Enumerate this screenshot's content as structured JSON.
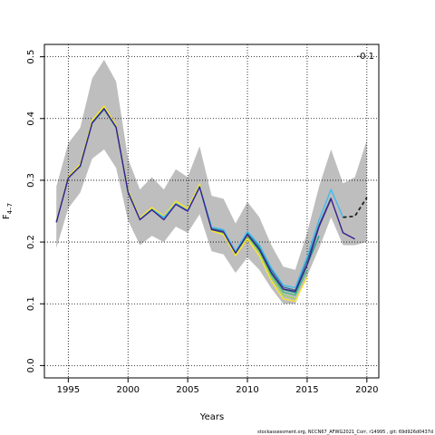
{
  "chart_data": {
    "type": "line",
    "xlabel": "Years",
    "ylabel_main": "F",
    "ylabel_sub": "4–7",
    "corner_label": "-0.1",
    "footer": "stockassessment.org,  NCCN67_AFWG2021_Corr,  r14995 ,  git: 69d926d0437d",
    "xlim": [
      1993,
      2021
    ],
    "ylim": [
      -0.02,
      0.52
    ],
    "x_ticks": [
      1995,
      2000,
      2005,
      2010,
      2015,
      2020
    ],
    "y_ticks": [
      0.0,
      0.1,
      0.2,
      0.3,
      0.4,
      0.5
    ],
    "y_tick_labels": [
      "0.0",
      "0.1",
      "0.2",
      "0.3",
      "0.4",
      "0.5"
    ],
    "grid": true,
    "band": {
      "color": "#bebebe",
      "x": [
        1994,
        1995,
        1996,
        1997,
        1998,
        1999,
        2000,
        2001,
        2002,
        2003,
        2004,
        2005,
        2006,
        2007,
        2008,
        2009,
        2010,
        2011,
        2012,
        2013,
        2014,
        2015,
        2016,
        2017,
        2018,
        2019,
        2020
      ],
      "upper": [
        0.29,
        0.36,
        0.385,
        0.465,
        0.495,
        0.46,
        0.335,
        0.285,
        0.305,
        0.285,
        0.318,
        0.305,
        0.355,
        0.275,
        0.27,
        0.23,
        0.265,
        0.24,
        0.195,
        0.16,
        0.155,
        0.215,
        0.29,
        0.35,
        0.295,
        0.305,
        0.365
      ],
      "lower": [
        0.19,
        0.255,
        0.28,
        0.335,
        0.35,
        0.32,
        0.235,
        0.195,
        0.21,
        0.2,
        0.225,
        0.215,
        0.245,
        0.185,
        0.18,
        0.15,
        0.175,
        0.155,
        0.125,
        0.1,
        0.1,
        0.145,
        0.19,
        0.24,
        0.195,
        0.195,
        0.2
      ]
    },
    "series": [
      {
        "color": "#1f9e89",
        "width": 1.4,
        "dash": "",
        "x": [
          1994,
          1995,
          1996,
          1997,
          1998,
          1999,
          2000,
          2001,
          2002,
          2003,
          2004,
          2005,
          2006,
          2007,
          2008,
          2009,
          2010,
          2011,
          2012,
          2013,
          2014,
          2015,
          2016
        ],
        "y": [
          0.232,
          0.305,
          0.322,
          0.392,
          0.415,
          0.385,
          0.28,
          0.237,
          0.252,
          0.24,
          0.262,
          0.251,
          0.29,
          0.22,
          0.216,
          0.182,
          0.213,
          0.19,
          0.151,
          0.123,
          0.118,
          0.163,
          0.21
        ]
      },
      {
        "color": "#35b779",
        "width": 1.2,
        "dash": "",
        "x": [
          1994,
          1995,
          1996,
          1997,
          1998,
          1999,
          2000,
          2001,
          2002,
          2003,
          2004,
          2005,
          2006,
          2007,
          2008,
          2009,
          2010,
          2011,
          2012,
          2013,
          2014,
          2015
        ],
        "y": [
          0.232,
          0.303,
          0.323,
          0.394,
          0.417,
          0.386,
          0.281,
          0.237,
          0.253,
          0.239,
          0.262,
          0.251,
          0.29,
          0.219,
          0.215,
          0.181,
          0.211,
          0.186,
          0.147,
          0.119,
          0.114,
          0.155
        ]
      },
      {
        "color": "#90d743",
        "width": 1.2,
        "dash": "",
        "x": [
          1994,
          1995,
          1996,
          1997,
          1998,
          1999,
          2000,
          2001,
          2002,
          2003,
          2004,
          2005,
          2006,
          2007,
          2008,
          2009,
          2010,
          2011,
          2012,
          2013,
          2014
        ],
        "y": [
          0.233,
          0.304,
          0.324,
          0.395,
          0.418,
          0.387,
          0.282,
          0.238,
          0.254,
          0.24,
          0.263,
          0.252,
          0.291,
          0.219,
          0.214,
          0.18,
          0.209,
          0.183,
          0.143,
          0.114,
          0.108
        ]
      },
      {
        "color": "#fde725",
        "width": 1.3,
        "dash": "",
        "x": [
          1994,
          1995,
          1996,
          1997,
          1998,
          1999,
          2000,
          2001,
          2002,
          2003,
          2004,
          2005,
          2006,
          2007,
          2008,
          2009,
          2010,
          2011,
          2012,
          2013,
          2014,
          2015
        ],
        "y": [
          0.234,
          0.306,
          0.326,
          0.397,
          0.42,
          0.389,
          0.284,
          0.239,
          0.256,
          0.242,
          0.266,
          0.254,
          0.294,
          0.218,
          0.212,
          0.178,
          0.205,
          0.178,
          0.137,
          0.108,
          0.104,
          0.143
        ]
      },
      {
        "color": "#31688e",
        "width": 1.2,
        "dash": "",
        "x": [
          1994,
          1995,
          1996,
          1997,
          1998,
          1999,
          2000,
          2001,
          2002,
          2003,
          2004,
          2005,
          2006,
          2007,
          2008,
          2009,
          2010,
          2011,
          2012,
          2013,
          2014,
          2015,
          2016,
          2017
        ],
        "y": [
          0.232,
          0.304,
          0.323,
          0.393,
          0.416,
          0.386,
          0.281,
          0.237,
          0.253,
          0.24,
          0.262,
          0.251,
          0.29,
          0.222,
          0.218,
          0.183,
          0.215,
          0.193,
          0.155,
          0.127,
          0.122,
          0.17,
          0.228,
          0.272
        ]
      },
      {
        "color": "#3fbbef",
        "width": 1.4,
        "dash": "",
        "x": [
          1994,
          1995,
          1996,
          1997,
          1998,
          1999,
          2000,
          2001,
          2002,
          2003,
          2004,
          2005,
          2006,
          2007,
          2008,
          2009,
          2010,
          2011,
          2012,
          2013,
          2014,
          2015,
          2016,
          2017,
          2018
        ],
        "y": [
          0.232,
          0.304,
          0.323,
          0.393,
          0.416,
          0.386,
          0.281,
          0.237,
          0.253,
          0.24,
          0.262,
          0.251,
          0.29,
          0.224,
          0.22,
          0.185,
          0.217,
          0.195,
          0.158,
          0.13,
          0.126,
          0.176,
          0.236,
          0.285,
          0.24
        ]
      },
      {
        "color": "#3b1f8f",
        "width": 1.4,
        "dash": "",
        "x": [
          1994,
          1995,
          1996,
          1997,
          1998,
          1999,
          2000,
          2001,
          2002,
          2003,
          2004,
          2005,
          2006,
          2007,
          2008,
          2009,
          2010,
          2011,
          2012,
          2013,
          2014,
          2015,
          2016,
          2017,
          2018,
          2019
        ],
        "y": [
          0.232,
          0.304,
          0.323,
          0.393,
          0.416,
          0.386,
          0.281,
          0.236,
          0.252,
          0.236,
          0.261,
          0.25,
          0.289,
          0.22,
          0.216,
          0.182,
          0.212,
          0.188,
          0.15,
          0.124,
          0.12,
          0.163,
          0.225,
          0.27,
          0.215,
          0.205
        ]
      },
      {
        "color": "#222222",
        "width": 1.8,
        "dash": "4,3",
        "x": [
          2018,
          2019,
          2020
        ],
        "y": [
          0.24,
          0.242,
          0.272
        ]
      }
    ]
  }
}
